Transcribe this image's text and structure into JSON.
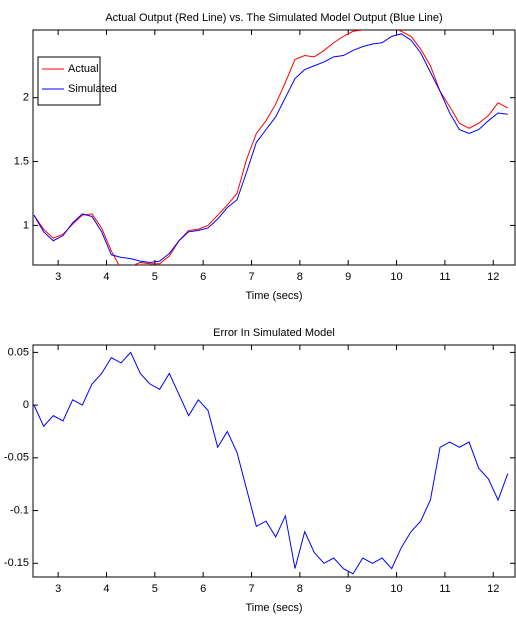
{
  "chart_data": [
    {
      "type": "line",
      "title": "Actual Output (Red Line) vs. The Simulated Model Output (Blue Line)",
      "x_label": "Time (secs)",
      "x": [
        2.5,
        2.7,
        2.9,
        3.1,
        3.3,
        3.5,
        3.7,
        3.9,
        4.1,
        4.3,
        4.5,
        4.7,
        4.9,
        5.1,
        5.3,
        5.5,
        5.7,
        5.9,
        6.1,
        6.3,
        6.5,
        6.7,
        6.9,
        7.1,
        7.3,
        7.5,
        7.7,
        7.9,
        8.1,
        8.3,
        8.5,
        8.7,
        8.9,
        9.1,
        9.3,
        9.5,
        9.7,
        9.9,
        10.1,
        10.3,
        10.5,
        10.7,
        10.9,
        11.1,
        11.3,
        11.5,
        11.7,
        11.9,
        12.1,
        12.3
      ],
      "series": [
        {
          "name": "Actual",
          "color": "#ff0000",
          "values": [
            1.08,
            0.97,
            0.9,
            0.93,
            1.01,
            1.08,
            1.09,
            0.98,
            0.8,
            0.66,
            0.68,
            0.71,
            0.7,
            0.7,
            0.76,
            0.88,
            0.96,
            0.97,
            1.0,
            1.08,
            1.16,
            1.25,
            1.52,
            1.72,
            1.82,
            1.95,
            2.12,
            2.3,
            2.33,
            2.32,
            2.37,
            2.43,
            2.48,
            2.52,
            2.53,
            2.54,
            2.55,
            2.55,
            2.52,
            2.48,
            2.38,
            2.25,
            2.05,
            1.93,
            1.8,
            1.76,
            1.8,
            1.86,
            1.96,
            1.92
          ]
        },
        {
          "name": "Simulated",
          "color": "#0000ff",
          "values": [
            1.08,
            0.95,
            0.88,
            0.92,
            1.02,
            1.09,
            1.07,
            0.95,
            0.77,
            0.75,
            0.74,
            0.72,
            0.71,
            0.72,
            0.78,
            0.88,
            0.95,
            0.96,
            0.98,
            1.05,
            1.14,
            1.2,
            1.42,
            1.65,
            1.75,
            1.85,
            2.0,
            2.15,
            2.22,
            2.25,
            2.28,
            2.32,
            2.33,
            2.37,
            2.4,
            2.42,
            2.43,
            2.48,
            2.5,
            2.45,
            2.35,
            2.2,
            2.05,
            1.88,
            1.75,
            1.72,
            1.75,
            1.82,
            1.88,
            1.87
          ]
        }
      ],
      "xlim": [
        2.48,
        12.45
      ],
      "xticks": [
        3,
        4,
        5,
        6,
        7,
        8,
        9,
        10,
        11,
        12
      ],
      "ylim": [
        0.69,
        2.53
      ],
      "yticks": [
        1,
        1.5,
        2
      ],
      "legend": "upper left"
    },
    {
      "type": "line",
      "title": "Error In Simulated Model",
      "x_label": "Time (secs)",
      "x": [
        2.5,
        2.7,
        2.9,
        3.1,
        3.3,
        3.5,
        3.7,
        3.9,
        4.1,
        4.3,
        4.5,
        4.7,
        4.9,
        5.1,
        5.3,
        5.5,
        5.7,
        5.9,
        6.1,
        6.3,
        6.5,
        6.7,
        6.9,
        7.1,
        7.3,
        7.5,
        7.7,
        7.9,
        8.1,
        8.3,
        8.5,
        8.7,
        8.9,
        9.1,
        9.3,
        9.5,
        9.7,
        9.9,
        10.1,
        10.3,
        10.5,
        10.7,
        10.9,
        11.1,
        11.3,
        11.5,
        11.7,
        11.9,
        12.1,
        12.3
      ],
      "series": [
        {
          "color": "#0000ff",
          "values": [
            0.0,
            -0.02,
            -0.01,
            -0.015,
            0.005,
            0.0,
            0.02,
            0.03,
            0.045,
            0.04,
            0.05,
            0.03,
            0.02,
            0.015,
            0.03,
            0.01,
            -0.01,
            0.005,
            -0.005,
            -0.04,
            -0.025,
            -0.045,
            -0.08,
            -0.115,
            -0.11,
            -0.125,
            -0.105,
            -0.155,
            -0.12,
            -0.14,
            -0.15,
            -0.145,
            -0.155,
            -0.16,
            -0.145,
            -0.15,
            -0.145,
            -0.155,
            -0.135,
            -0.12,
            -0.11,
            -0.09,
            -0.04,
            -0.035,
            -0.04,
            -0.035,
            -0.06,
            -0.07,
            -0.09,
            -0.065
          ]
        }
      ],
      "xlim": [
        2.48,
        12.45
      ],
      "xticks": [
        3,
        4,
        5,
        6,
        7,
        8,
        9,
        10,
        11,
        12
      ],
      "ylim": [
        -0.163,
        0.057
      ],
      "yticks": [
        0.05,
        0,
        -0.05,
        -0.1,
        -0.15
      ]
    }
  ]
}
